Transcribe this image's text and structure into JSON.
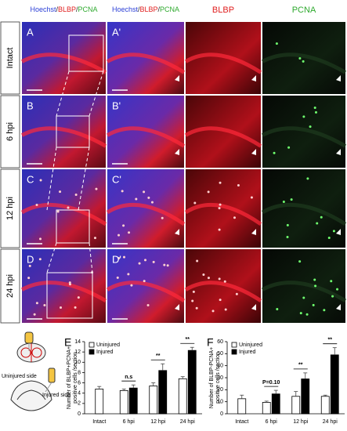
{
  "column_headers": [
    [
      {
        "text": "Hoechst",
        "color": "#2b3fd6"
      },
      {
        "text": "/",
        "color": "#222222"
      },
      {
        "text": "BLBP",
        "color": "#e02020"
      },
      {
        "text": "/",
        "color": "#222222"
      },
      {
        "text": "PCNA",
        "color": "#2faa2f"
      }
    ],
    [
      {
        "text": "Hoechst",
        "color": "#2b3fd6"
      },
      {
        "text": "/",
        "color": "#222222"
      },
      {
        "text": "BLBP",
        "color": "#e02020"
      },
      {
        "text": "/",
        "color": "#222222"
      },
      {
        "text": "PCNA",
        "color": "#2faa2f"
      }
    ],
    [
      {
        "text": "BLBP",
        "color": "#e02020"
      }
    ],
    [
      {
        "text": "PCNA",
        "color": "#2faa2f"
      }
    ]
  ],
  "row_labels": [
    "Intact",
    "6 hpi",
    "12 hpi",
    "24 hpi"
  ],
  "panel_labels": [
    [
      "A",
      "A'"
    ],
    [
      "B",
      "B'"
    ],
    [
      "C",
      "C'"
    ],
    [
      "D",
      "D'"
    ]
  ],
  "schematic": {
    "labels": [
      "Uninjured side",
      "Injured side"
    ]
  },
  "chart_data": [
    {
      "type": "bar",
      "panel": "E",
      "ylabel": [
        "Number of BLBP+PCNA+",
        "positive cells /section"
      ],
      "categories": [
        "Intact",
        "6 hpi",
        "12 hpi",
        "24 hpi"
      ],
      "series": [
        {
          "name": "Uninjured",
          "color": "#ffffff",
          "values": [
            4.8,
            4.5,
            5.4,
            6.8
          ],
          "errors": [
            0.5,
            0.3,
            0.6,
            0.4
          ]
        },
        {
          "name": "Injured",
          "color": "#000000",
          "values": [
            null,
            5.0,
            8.4,
            12.3
          ],
          "errors": [
            null,
            0.6,
            1.3,
            0.6
          ]
        }
      ],
      "annotations": [
        null,
        "n.s",
        "**",
        "**"
      ],
      "ylim": [
        0,
        14
      ],
      "yticks": [
        0,
        2,
        4,
        6,
        8,
        10,
        12,
        14
      ]
    },
    {
      "type": "bar",
      "panel": "F",
      "ylabel": [
        "Number of BLBP-PCNA+",
        "positive cells /section"
      ],
      "categories": [
        "Intact",
        "6 hpi",
        "12 hpi",
        "24 hpi"
      ],
      "series": [
        {
          "name": "Uninjured",
          "color": "#ffffff",
          "values": [
            12.5,
            9.5,
            14.5,
            14.5
          ],
          "errors": [
            3,
            1,
            4,
            1
          ]
        },
        {
          "name": "Injured",
          "color": "#000000",
          "values": [
            null,
            16.5,
            29,
            49
          ],
          "errors": [
            null,
            3,
            5,
            6
          ]
        }
      ],
      "annotations": [
        null,
        "P=0.10",
        "**",
        "**"
      ],
      "ylim": [
        0,
        60
      ],
      "yticks": [
        0,
        10,
        20,
        30,
        40,
        50,
        60
      ]
    }
  ]
}
